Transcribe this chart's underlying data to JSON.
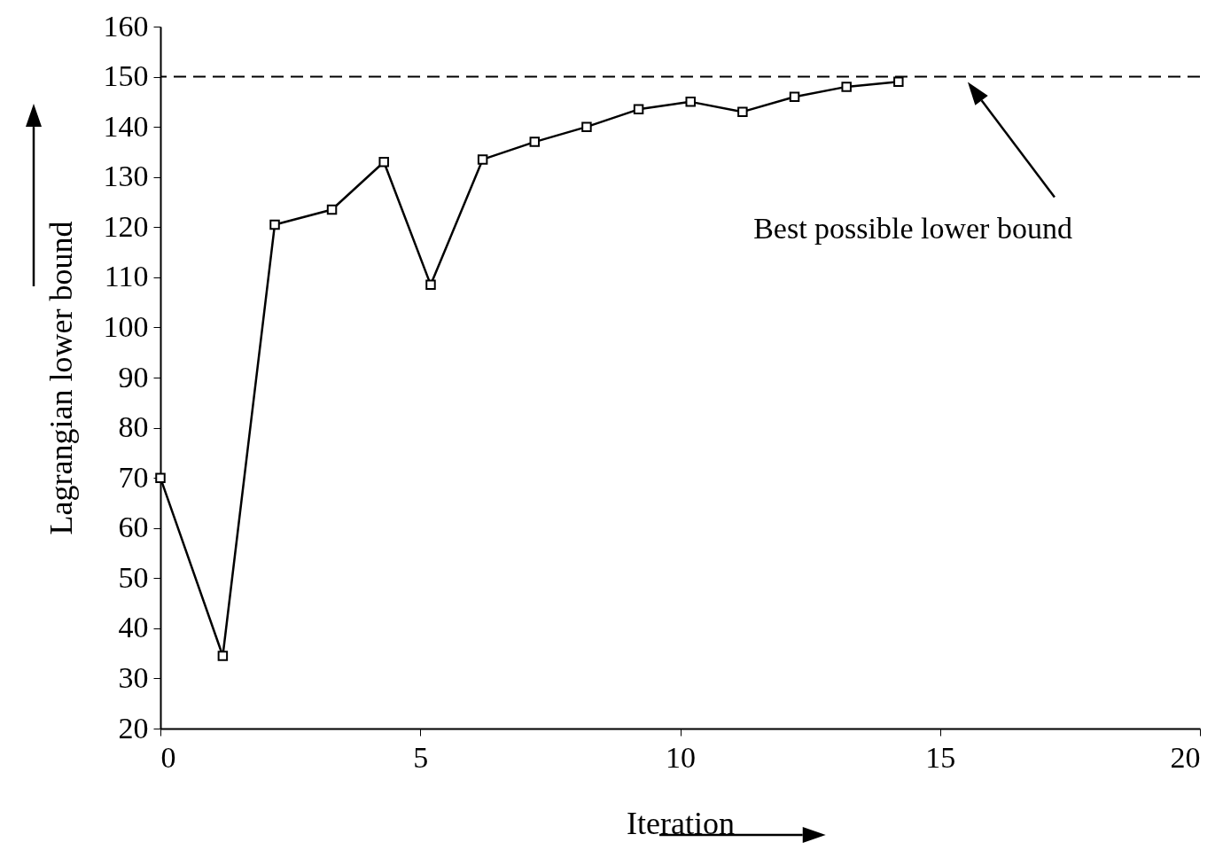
{
  "chart_data": {
    "type": "line",
    "xlabel": "Iteration",
    "ylabel": "Lagrangian lower bound",
    "x": [
      0,
      1.2,
      2.2,
      3.3,
      4.3,
      5.2,
      6.2,
      7.2,
      8.2,
      9.2,
      10.2,
      11.2,
      12.2,
      13.2,
      14.2
    ],
    "series": [
      {
        "color": "#000000",
        "values": [
          70,
          34.5,
          120.5,
          123.5,
          133,
          108.5,
          133.5,
          137,
          140,
          143.5,
          145,
          143,
          146,
          148,
          149
        ]
      }
    ],
    "xlim": [
      0,
      20
    ],
    "xticks": [
      0,
      5,
      10,
      15,
      20
    ],
    "ylim": [
      20,
      160
    ],
    "yticks": [
      20,
      30,
      40,
      50,
      60,
      70,
      80,
      90,
      100,
      110,
      120,
      130,
      140,
      150,
      160
    ],
    "ref_lines": [
      {
        "axis": "y",
        "value": 150,
        "label": "Best possible lower bound",
        "line_style": "dashed",
        "color": "#000000"
      }
    ],
    "marker": "square",
    "line_style": "solid",
    "grid": false
  }
}
